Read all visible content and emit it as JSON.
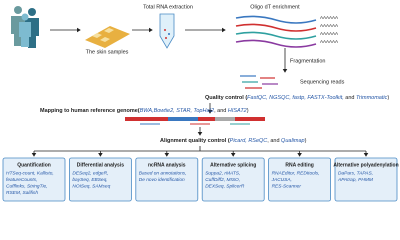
{
  "samples": "The skin samples",
  "extraction": "Total RNA extraction",
  "enrichment": "Oligo dT enrichment",
  "polya": "AAAAAA",
  "fragmentation": "Fragmentation",
  "reads": "Sequencing reads",
  "quality_control": {
    "label": "Quality control (",
    "tools": "FastQC, NGSQC, fastp, FASTX-Toolkit,",
    "and": " and ",
    "last": "Trimmomatic",
    "close": ")"
  },
  "mapping": {
    "label": "Mapping to human reference genome(",
    "tools": "BWA,Bowtie2, STAR, TopHat2",
    "and": ", and ",
    "last": "HISAT2",
    "close": ")"
  },
  "alignment_qc": {
    "label": "Alignment quality control (",
    "tools": "Picard, RSeQC",
    "and": ", and ",
    "last": "Qualimap",
    "close": ")"
  },
  "analyses": [
    {
      "title": "Quantification",
      "tools": [
        "HTSeq-count, Kallisto,",
        "featureCounts,",
        "Cufflinks, StringTie,",
        "RSEM, Salifish"
      ]
    },
    {
      "title": "Differential analysis",
      "tools": [
        "DESeq2, edgeR,",
        "baySeq, EBSeq,",
        "NOISeq, SAMseq"
      ]
    },
    {
      "title": "ncRNA analysis",
      "tools": [
        "Based on annotations,",
        "De novo identification"
      ]
    },
    {
      "title": "Alternative splicing",
      "tools": [
        "Suppa2, rMATS,",
        "CuffDiff2, MISO,",
        "DEXSeq, SplicerR"
      ]
    },
    {
      "title": "RNA editing",
      "tools": [
        "RNAEditor, REDItools,",
        "JACUSA,",
        "RES-Scanner"
      ]
    },
    {
      "title": "Alternative polyadenylation",
      "tools": [
        "DaPars, TAPAS,",
        "APAtrap, PHMM"
      ]
    }
  ]
}
